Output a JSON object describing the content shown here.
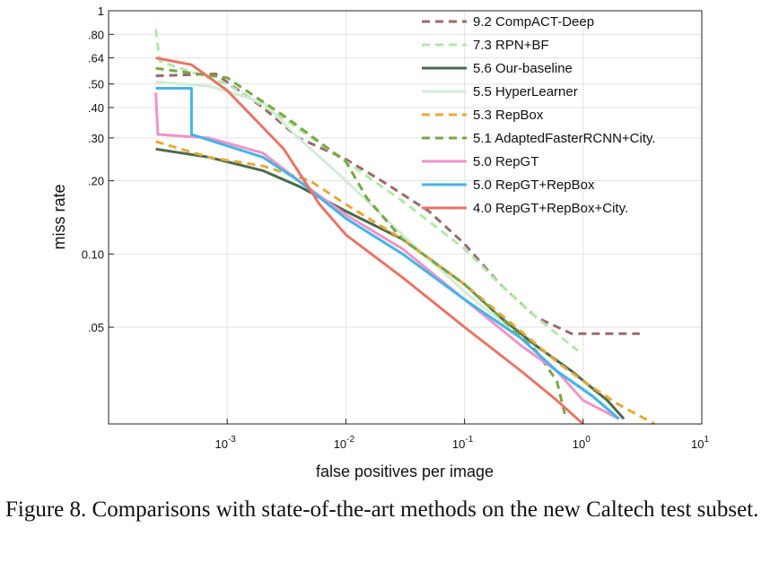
{
  "caption": "Figure 8. Comparisons with state-of-the-art methods on the new Caltech test subset.",
  "chart_data": {
    "type": "line",
    "xlabel": "false positives per image",
    "ylabel": "miss rate",
    "xscale": "log",
    "yscale": "log",
    "xlim": [
      0.0001,
      10
    ],
    "ylim": [
      0.02,
      1
    ],
    "x_ticks": [
      {
        "value": 0.001,
        "base": "10",
        "exp": "-3"
      },
      {
        "value": 0.01,
        "base": "10",
        "exp": "-2"
      },
      {
        "value": 0.1,
        "base": "10",
        "exp": "-1"
      },
      {
        "value": 1,
        "base": "10",
        "exp": "0"
      },
      {
        "value": 10,
        "base": "10",
        "exp": "1"
      }
    ],
    "y_ticks": [
      {
        "value": 1,
        "label": "1"
      },
      {
        "value": 0.8,
        "label": ".80"
      },
      {
        "value": 0.64,
        "label": ".64"
      },
      {
        "value": 0.5,
        "label": ".50"
      },
      {
        "value": 0.4,
        "label": ".40"
      },
      {
        "value": 0.3,
        "label": ".30"
      },
      {
        "value": 0.2,
        "label": ".20"
      },
      {
        "value": 0.1,
        "label": "0.10"
      },
      {
        "value": 0.05,
        "label": ".05"
      }
    ],
    "grid": true,
    "legend_position": "top-right",
    "series": [
      {
        "name": "9.2 CompACT-Deep",
        "color": "#9b6a6c",
        "dash": "dashed",
        "points": [
          [
            0.00025,
            0.54
          ],
          [
            0.0008,
            0.55
          ],
          [
            0.002,
            0.4
          ],
          [
            0.004,
            0.3
          ],
          [
            0.01,
            0.245
          ],
          [
            0.02,
            0.2
          ],
          [
            0.05,
            0.15
          ],
          [
            0.1,
            0.11
          ],
          [
            0.2,
            0.075
          ],
          [
            0.4,
            0.055
          ],
          [
            0.8,
            0.047
          ],
          [
            3,
            0.047
          ]
        ]
      },
      {
        "name": "7.3 RPN+BF",
        "color": "#b2e8a9",
        "dash": "dashed",
        "points": [
          [
            0.00025,
            0.84
          ],
          [
            0.00027,
            0.62
          ],
          [
            0.001,
            0.5
          ],
          [
            0.003,
            0.36
          ],
          [
            0.01,
            0.24
          ],
          [
            0.03,
            0.165
          ],
          [
            0.1,
            0.105
          ],
          [
            0.2,
            0.075
          ],
          [
            0.4,
            0.055
          ],
          [
            0.8,
            0.042
          ],
          [
            0.9,
            0.04
          ]
        ]
      },
      {
        "name": "5.6 Our-baseline",
        "color": "#4b6b4b",
        "dash": "solid",
        "points": [
          [
            0.00025,
            0.27
          ],
          [
            0.0007,
            0.25
          ],
          [
            0.002,
            0.22
          ],
          [
            0.004,
            0.19
          ],
          [
            0.01,
            0.15
          ],
          [
            0.03,
            0.115
          ],
          [
            0.1,
            0.075
          ],
          [
            0.2,
            0.055
          ],
          [
            0.4,
            0.042
          ],
          [
            0.8,
            0.033
          ],
          [
            1.2,
            0.028
          ],
          [
            1.6,
            0.025
          ],
          [
            2.2,
            0.021
          ]
        ]
      },
      {
        "name": "5.5 HyperLearner",
        "color": "#d3ecd8",
        "dash": "solid",
        "points": [
          [
            0.00025,
            0.51
          ],
          [
            0.0007,
            0.49
          ],
          [
            0.002,
            0.42
          ],
          [
            0.004,
            0.3
          ],
          [
            0.01,
            0.2
          ],
          [
            0.03,
            0.12
          ],
          [
            0.1,
            0.07
          ],
          [
            0.3,
            0.045
          ],
          [
            0.6,
            0.033
          ],
          [
            1,
            0.028
          ],
          [
            1.5,
            0.024
          ],
          [
            2,
            0.021
          ]
        ]
      },
      {
        "name": "5.3 RepBox",
        "color": "#e8a838",
        "dash": "dashed",
        "points": [
          [
            0.00025,
            0.29
          ],
          [
            0.0007,
            0.25
          ],
          [
            0.002,
            0.23
          ],
          [
            0.005,
            0.2
          ],
          [
            0.01,
            0.16
          ],
          [
            0.03,
            0.115
          ],
          [
            0.1,
            0.075
          ],
          [
            0.3,
            0.048
          ],
          [
            0.6,
            0.036
          ],
          [
            1,
            0.03
          ],
          [
            2,
            0.024
          ],
          [
            4,
            0.02
          ]
        ]
      },
      {
        "name": "5.1 AdaptedFasterRCNN+City.",
        "color": "#77a843",
        "dash": "dashed",
        "points": [
          [
            0.00025,
            0.58
          ],
          [
            0.001,
            0.53
          ],
          [
            0.003,
            0.37
          ],
          [
            0.01,
            0.24
          ],
          [
            0.015,
            0.17
          ],
          [
            0.03,
            0.115
          ],
          [
            0.1,
            0.075
          ],
          [
            0.2,
            0.055
          ],
          [
            0.4,
            0.04
          ],
          [
            0.6,
            0.03
          ],
          [
            0.7,
            0.022
          ]
        ]
      },
      {
        "name": "5.0 RepGT",
        "color": "#f093c8",
        "dash": "solid",
        "points": [
          [
            0.00025,
            0.46
          ],
          [
            0.00026,
            0.31
          ],
          [
            0.0007,
            0.3
          ],
          [
            0.002,
            0.26
          ],
          [
            0.004,
            0.2
          ],
          [
            0.01,
            0.145
          ],
          [
            0.03,
            0.105
          ],
          [
            0.1,
            0.065
          ],
          [
            0.3,
            0.042
          ],
          [
            0.6,
            0.033
          ],
          [
            1,
            0.025
          ],
          [
            2,
            0.021
          ]
        ]
      },
      {
        "name": "5.0 RepGT+RepBox",
        "color": "#44b4e8",
        "dash": "solid",
        "points": [
          [
            0.00025,
            0.48
          ],
          [
            0.0005,
            0.48
          ],
          [
            0.0005,
            0.31
          ],
          [
            0.002,
            0.25
          ],
          [
            0.004,
            0.2
          ],
          [
            0.01,
            0.14
          ],
          [
            0.03,
            0.1
          ],
          [
            0.1,
            0.065
          ],
          [
            0.3,
            0.045
          ],
          [
            0.6,
            0.033
          ],
          [
            1.2,
            0.026
          ],
          [
            2,
            0.021
          ]
        ]
      },
      {
        "name": "4.0 RepGT+RepBox+City.",
        "color": "#e87567",
        "dash": "solid",
        "points": [
          [
            0.00025,
            0.64
          ],
          [
            0.0005,
            0.6
          ],
          [
            0.001,
            0.47
          ],
          [
            0.003,
            0.27
          ],
          [
            0.006,
            0.16
          ],
          [
            0.01,
            0.12
          ],
          [
            0.03,
            0.08
          ],
          [
            0.1,
            0.05
          ],
          [
            0.3,
            0.033
          ],
          [
            0.6,
            0.025
          ],
          [
            1,
            0.02
          ]
        ]
      }
    ]
  }
}
